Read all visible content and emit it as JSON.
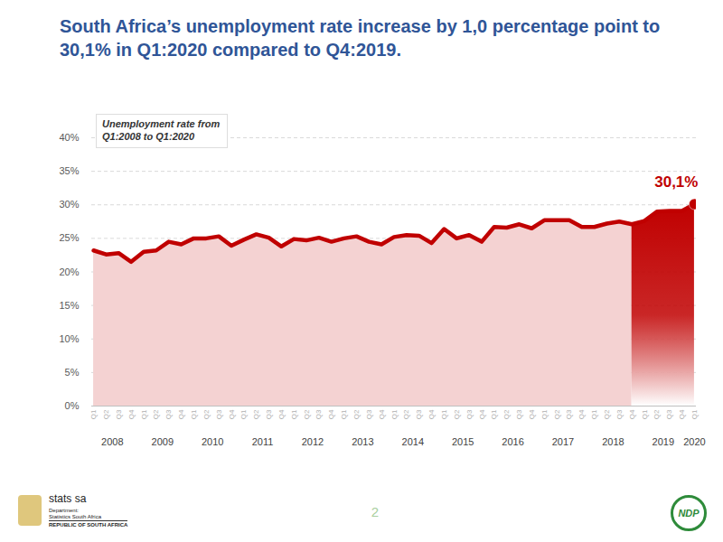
{
  "chart_data": {
    "type": "area",
    "title": "South Africa’s unemployment rate increase by 1,0 percentage point to 30,1% in Q1:2020 compared to Q4:2019.",
    "subtitle": [
      "Unemployment rate from",
      "Q1:2008 to Q1:2020"
    ],
    "categories": [
      "Q1",
      "Q2",
      "Q3",
      "Q4",
      "Q1",
      "Q2",
      "Q3",
      "Q4",
      "Q1",
      "Q2",
      "Q3",
      "Q4",
      "Q1",
      "Q2",
      "Q3",
      "Q4",
      "Q1",
      "Q2",
      "Q3",
      "Q4",
      "Q1",
      "Q2",
      "Q3",
      "Q4",
      "Q1",
      "Q2",
      "Q3",
      "Q4",
      "Q1",
      "Q2",
      "Q3",
      "Q4",
      "Q1",
      "Q2",
      "Q3",
      "Q4",
      "Q1",
      "Q2",
      "Q3",
      "Q4",
      "Q1",
      "Q2",
      "Q3",
      "Q4",
      "Q1",
      "Q2",
      "Q3",
      "Q4",
      "Q1"
    ],
    "year_groups": [
      {
        "label": "2008",
        "count": 4
      },
      {
        "label": "2009",
        "count": 4
      },
      {
        "label": "2010",
        "count": 4
      },
      {
        "label": "2011",
        "count": 4
      },
      {
        "label": "2012",
        "count": 4
      },
      {
        "label": "2013",
        "count": 4
      },
      {
        "label": "2014",
        "count": 4
      },
      {
        "label": "2015",
        "count": 4
      },
      {
        "label": "2016",
        "count": 4
      },
      {
        "label": "2017",
        "count": 4
      },
      {
        "label": "2018",
        "count": 4
      },
      {
        "label": "2019",
        "count": 4
      },
      {
        "label": "2020",
        "count": 1
      }
    ],
    "values": [
      23.2,
      22.6,
      22.8,
      21.5,
      23.0,
      23.2,
      24.5,
      24.1,
      25.0,
      25.0,
      25.3,
      23.9,
      24.8,
      25.6,
      25.1,
      23.8,
      24.9,
      24.7,
      25.1,
      24.5,
      25.0,
      25.3,
      24.5,
      24.1,
      25.2,
      25.5,
      25.4,
      24.3,
      26.4,
      25.0,
      25.5,
      24.5,
      26.7,
      26.6,
      27.1,
      26.5,
      27.7,
      27.7,
      27.7,
      26.7,
      26.7,
      27.2,
      27.5,
      27.1,
      27.6,
      29.0,
      29.1,
      29.1,
      30.1
    ],
    "color": "#c00000",
    "colors": [
      "#f4d2d2",
      "#f4d2d2",
      "#f4d2d2",
      "#f4d2d2",
      "#f4d2d2",
      "#f4d2d2",
      "#f4d2d2",
      "#f4d2d2",
      "#f4d2d2",
      "#f4d2d2",
      "#f4d2d2",
      "#f4d2d2",
      "#f4d2d2",
      "#f4d2d2",
      "#f4d2d2",
      "#f4d2d2",
      "#f4d2d2",
      "#f4d2d2",
      "#f4d2d2",
      "#f4d2d2",
      "#f4d2d2",
      "#f4d2d2",
      "#f4d2d2",
      "#f4d2d2",
      "#f4d2d2",
      "#f4d2d2",
      "#f4d2d2",
      "#f4d2d2",
      "#f4d2d2",
      "#f4d2d2",
      "#f4d2d2",
      "#f4d2d2",
      "#f4d2d2",
      "#f4d2d2",
      "#f4d2d2",
      "#f4d2d2",
      "#f4d2d2",
      "#f4d2d2",
      "#f4d2d2",
      "#f4d2d2",
      "#f4d2d2",
      "#f4d2d2",
      "#f4d2d2",
      "#c00000",
      "#c00000",
      "#c00000",
      "#c00000",
      "#c00000",
      "#c00000"
    ],
    "ylim": [
      0,
      40
    ],
    "yticks": [
      {
        "value": 0,
        "label": "0%"
      },
      {
        "value": 5,
        "label": "5%"
      },
      {
        "value": 10,
        "label": "10%"
      },
      {
        "value": 15,
        "label": "15%"
      },
      {
        "value": 20,
        "label": "20%"
      },
      {
        "value": 25,
        "label": "25%"
      },
      {
        "value": 30,
        "label": "30%"
      },
      {
        "value": 35,
        "label": "35%"
      },
      {
        "value": 40,
        "label": "40%"
      }
    ],
    "grid": true,
    "annotations": [
      {
        "index": 48,
        "text": "30,1%"
      }
    ],
    "footer": {
      "page_number": "2",
      "logo_left": [
        "stats sa",
        "Department:",
        "Statistics South Africa",
        "REPUBLIC OF SOUTH AFRICA"
      ],
      "logo_right": "NDP"
    }
  }
}
